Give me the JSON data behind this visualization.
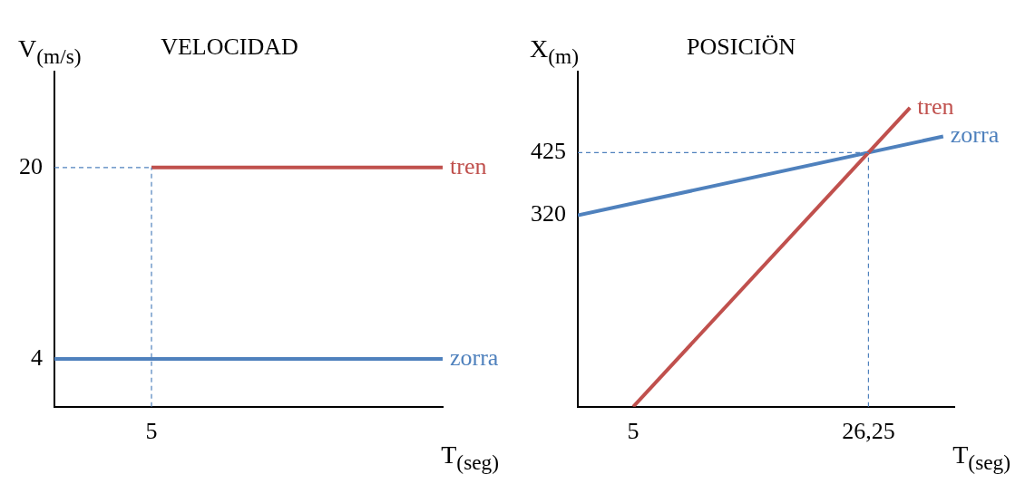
{
  "chart_data": [
    {
      "type": "line",
      "title": "VELOCIDAD",
      "xlabel": "T$_{(seg)}$",
      "ylabel": "V$_{(m/s)}$",
      "categories": [
        null,
        "5",
        null,
        null,
        null
      ],
      "ylim": [
        0,
        28
      ],
      "yticks": [
        4,
        20
      ],
      "grid": false,
      "legend": false,
      "series": [
        {
          "name": "tren",
          "color": "#c0504d",
          "values": [
            null,
            20,
            20,
            20,
            20
          ]
        },
        {
          "name": "zorra",
          "color": "#4f81bd",
          "values": [
            4,
            4,
            4,
            4,
            4
          ]
        }
      ],
      "ref_lines": [
        {
          "axis": "x",
          "value": "5",
          "color": "#4f81bd",
          "line_style": "dashed"
        },
        {
          "axis": "y",
          "value": 20,
          "color": "#4f81bd",
          "line_style": "dashed"
        }
      ]
    },
    {
      "type": "line",
      "title": "POSICIÖN",
      "xlabel": "T$_{(seg)}$",
      "ylabel": "X$_{(m)}$",
      "xlim": [
        0,
        34
      ],
      "ylim": [
        0,
        560
      ],
      "xticks": [
        5,
        {
          "value": 26.25,
          "label": "26,25"
        }
      ],
      "yticks": [
        320,
        425
      ],
      "grid": false,
      "legend": false,
      "series": [
        {
          "name": "tren",
          "color": "#c0504d",
          "x": [
            5,
            30
          ],
          "values": [
            0,
            500
          ]
        },
        {
          "name": "zorra",
          "color": "#4f81bd",
          "x": [
            0,
            33
          ],
          "values": [
            320,
            452
          ]
        }
      ],
      "ref_lines": [
        {
          "axis": "x",
          "value": 26.25,
          "color": "#4f81bd",
          "line_style": "dashed"
        },
        {
          "axis": "y",
          "value": 425,
          "color": "#4f81bd",
          "line_style": "dashed"
        }
      ]
    }
  ]
}
